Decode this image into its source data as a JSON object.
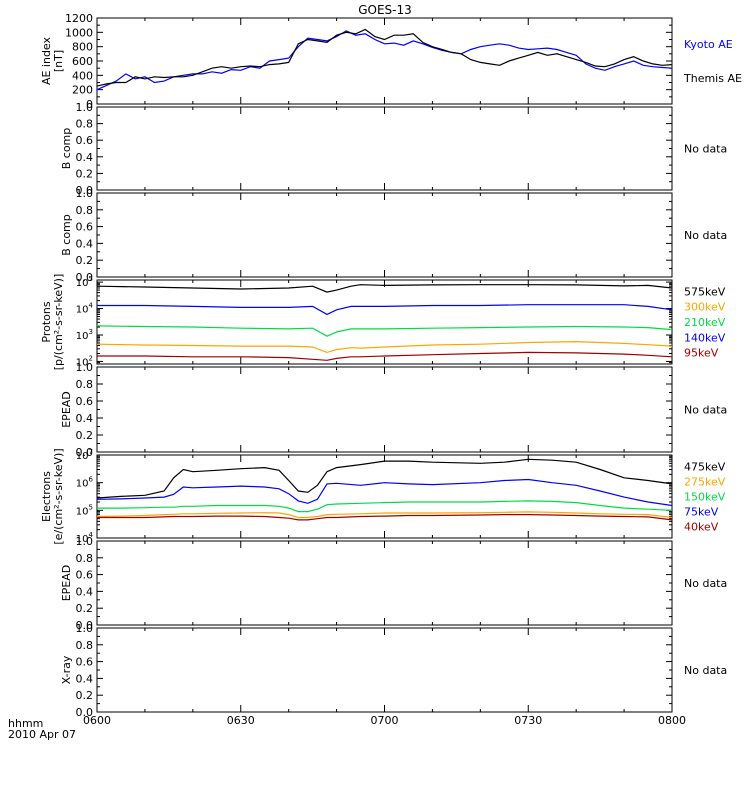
{
  "title": "GOES-13",
  "footer": {
    "time_label": "hhmm",
    "date_label": "2010 Apr 07"
  },
  "x_ticks": [
    "0600",
    "0630",
    "0700",
    "0730",
    "0800"
  ],
  "x_range": [
    0,
    120
  ],
  "chart_data": [
    {
      "id": "ae",
      "type": "line",
      "ylabel": "AE index",
      "yunit": "[nT]",
      "ylim": [
        0,
        1200
      ],
      "yticks": [
        "0",
        "200",
        "400",
        "600",
        "800",
        "1000",
        "1200"
      ],
      "x": [
        0,
        2,
        4,
        6,
        8,
        10,
        12,
        14,
        16,
        18,
        20,
        22,
        24,
        26,
        28,
        30,
        32,
        34,
        36,
        38,
        40,
        42,
        44,
        46,
        48,
        50,
        52,
        54,
        56,
        58,
        60,
        62,
        64,
        66,
        68,
        70,
        72,
        74,
        76,
        78,
        80,
        82,
        84,
        86,
        88,
        90,
        92,
        94,
        96,
        98,
        100,
        102,
        104,
        106,
        108,
        110,
        112,
        114,
        116,
        118,
        120
      ],
      "series": [
        {
          "name": "Kyoto AE",
          "color": "#0000ff",
          "values": [
            200,
            260,
            320,
            420,
            350,
            380,
            300,
            320,
            380,
            400,
            420,
            420,
            450,
            430,
            480,
            470,
            520,
            500,
            600,
            620,
            640,
            800,
            920,
            900,
            880,
            940,
            1020,
            960,
            980,
            900,
            840,
            850,
            820,
            880,
            840,
            790,
            750,
            720,
            700,
            760,
            800,
            820,
            840,
            820,
            780,
            760,
            770,
            780,
            760,
            720,
            680,
            560,
            500,
            470,
            520,
            560,
            600,
            540,
            520,
            510,
            500
          ]
        },
        {
          "name": "Themis AE",
          "color": "#000000",
          "values": [
            250,
            280,
            300,
            300,
            380,
            350,
            380,
            370,
            380,
            380,
            400,
            450,
            500,
            520,
            500,
            520,
            530,
            520,
            550,
            560,
            580,
            840,
            900,
            880,
            860,
            960,
            1000,
            980,
            1040,
            940,
            900,
            960,
            960,
            980,
            860,
            800,
            760,
            720,
            700,
            620,
            580,
            560,
            540,
            600,
            640,
            680,
            720,
            680,
            700,
            660,
            620,
            580,
            530,
            520,
            560,
            620,
            660,
            600,
            560,
            540,
            550
          ]
        }
      ]
    },
    {
      "id": "bcomp1",
      "type": "line",
      "ylabel": "B comp",
      "ylim": [
        0,
        1
      ],
      "yticks": [
        "0.0",
        "0.2",
        "0.4",
        "0.6",
        "0.8",
        "1.0"
      ],
      "series": [],
      "note": "No data"
    },
    {
      "id": "bcomp2",
      "type": "line",
      "ylabel": "B comp",
      "ylim": [
        0,
        1
      ],
      "yticks": [
        "0.0",
        "0.2",
        "0.4",
        "0.6",
        "0.8",
        "1.0"
      ],
      "series": [],
      "note": "No data"
    },
    {
      "id": "protons",
      "type": "line",
      "log": true,
      "ylabel": "Protons",
      "yunit": "[p/(cm²-s-sr-keV)]",
      "ylim": [
        80,
        120000
      ],
      "yticks": [
        {
          "v": 100,
          "b": "10",
          "e": "2"
        },
        {
          "v": 1000,
          "b": "10",
          "e": "3"
        },
        {
          "v": 10000,
          "b": "10",
          "e": "4"
        },
        {
          "v": 100000,
          "b": "10",
          "e": "5"
        }
      ],
      "x": [
        0,
        10,
        20,
        30,
        40,
        45,
        48,
        50,
        53,
        55,
        60,
        70,
        80,
        90,
        100,
        110,
        115,
        120
      ],
      "series": [
        {
          "name": "575keV",
          "color": "#000000",
          "values": [
            70000,
            65000,
            60000,
            55000,
            60000,
            70000,
            42000,
            50000,
            70000,
            80000,
            75000,
            78000,
            80000,
            80000,
            78000,
            72000,
            75000,
            60000
          ]
        },
        {
          "name": "300keV",
          "color": "#ffa500",
          "values": [
            450,
            420,
            400,
            380,
            380,
            350,
            220,
            280,
            330,
            320,
            350,
            420,
            450,
            520,
            560,
            480,
            430,
            380
          ]
        },
        {
          "name": "210keV",
          "color": "#00dd44",
          "values": [
            2200,
            2100,
            2000,
            1800,
            1700,
            1800,
            900,
            1300,
            1700,
            1700,
            1700,
            1800,
            1900,
            2000,
            2100,
            2000,
            1900,
            1600
          ]
        },
        {
          "name": "140keV",
          "color": "#0000ff",
          "values": [
            13000,
            13000,
            12000,
            11000,
            11000,
            12000,
            6000,
            9000,
            12000,
            12000,
            12000,
            13000,
            13000,
            14000,
            14000,
            14000,
            12000,
            9000
          ]
        },
        {
          "name": "95keV",
          "color": "#a00000",
          "values": [
            160,
            160,
            150,
            150,
            140,
            120,
            110,
            130,
            150,
            150,
            160,
            180,
            200,
            220,
            210,
            190,
            170,
            150
          ]
        }
      ]
    },
    {
      "id": "epead1",
      "type": "line",
      "ylabel": "EPEAD",
      "ylim": [
        0,
        1
      ],
      "yticks": [
        "0.0",
        "0.2",
        "0.4",
        "0.6",
        "0.8",
        "1.0"
      ],
      "series": [],
      "note": "No data"
    },
    {
      "id": "electrons",
      "type": "line",
      "log": true,
      "ylabel": "Electrons",
      "yunit": "[e/(cm²-s-sr-keV)]",
      "ylim": [
        10000,
        10000000
      ],
      "yticks": [
        {
          "v": 10000,
          "b": "10",
          "e": "4"
        },
        {
          "v": 100000,
          "b": "10",
          "e": "5"
        },
        {
          "v": 1000000,
          "b": "10",
          "e": "6"
        },
        {
          "v": 10000000,
          "b": "10",
          "e": "7"
        }
      ],
      "x": [
        0,
        5,
        10,
        14,
        16,
        18,
        20,
        25,
        30,
        35,
        38,
        40,
        42,
        44,
        46,
        48,
        50,
        55,
        60,
        65,
        70,
        80,
        85,
        90,
        95,
        100,
        105,
        110,
        115,
        120
      ],
      "series": [
        {
          "name": "475keV",
          "color": "#000000",
          "values": [
            280000,
            320000,
            350000,
            500000,
            1500000,
            3000000,
            2500000,
            2800000,
            3200000,
            3500000,
            2800000,
            1200000,
            500000,
            450000,
            800000,
            2500000,
            3500000,
            4500000,
            6000000,
            6000000,
            5500000,
            5000000,
            5500000,
            7000000,
            6500000,
            5500000,
            3000000,
            1500000,
            1200000,
            900000
          ]
        },
        {
          "name": "275keV",
          "color": "#ffa500",
          "values": [
            60000,
            62000,
            65000,
            70000,
            72000,
            75000,
            75000,
            78000,
            80000,
            82000,
            80000,
            70000,
            55000,
            55000,
            60000,
            70000,
            72000,
            75000,
            80000,
            80000,
            80000,
            82000,
            85000,
            88000,
            85000,
            80000,
            75000,
            72000,
            70000,
            55000
          ]
        },
        {
          "name": "150keV",
          "color": "#00dd44",
          "values": [
            120000,
            120000,
            125000,
            130000,
            130000,
            140000,
            140000,
            150000,
            150000,
            150000,
            140000,
            120000,
            90000,
            90000,
            110000,
            160000,
            170000,
            180000,
            190000,
            200000,
            200000,
            200000,
            210000,
            220000,
            210000,
            190000,
            150000,
            120000,
            110000,
            100000
          ]
        },
        {
          "name": "75keV",
          "color": "#0000ff",
          "values": [
            250000,
            260000,
            280000,
            300000,
            380000,
            700000,
            650000,
            700000,
            750000,
            700000,
            600000,
            400000,
            220000,
            180000,
            250000,
            900000,
            950000,
            800000,
            1000000,
            900000,
            850000,
            1000000,
            1200000,
            1300000,
            1000000,
            800000,
            500000,
            300000,
            200000,
            150000
          ]
        },
        {
          "name": "40keV",
          "color": "#a00000",
          "values": [
            55000,
            55000,
            55000,
            58000,
            60000,
            60000,
            60000,
            62000,
            62000,
            60000,
            55000,
            52000,
            45000,
            45000,
            50000,
            55000,
            55000,
            60000,
            62000,
            65000,
            65000,
            68000,
            70000,
            70000,
            68000,
            65000,
            62000,
            60000,
            58000,
            45000
          ]
        }
      ]
    },
    {
      "id": "epead2",
      "type": "line",
      "ylabel": "EPEAD",
      "ylim": [
        0,
        1
      ],
      "yticks": [
        "0.0",
        "0.2",
        "0.4",
        "0.6",
        "0.8",
        "1.0"
      ],
      "series": [],
      "note": "No data"
    },
    {
      "id": "xray",
      "type": "line",
      "ylabel": "X-ray",
      "ylim": [
        0,
        1
      ],
      "yticks": [
        "0.0",
        "0.2",
        "0.4",
        "0.6",
        "0.8",
        "1.0"
      ],
      "series": [],
      "note": "No data"
    }
  ]
}
